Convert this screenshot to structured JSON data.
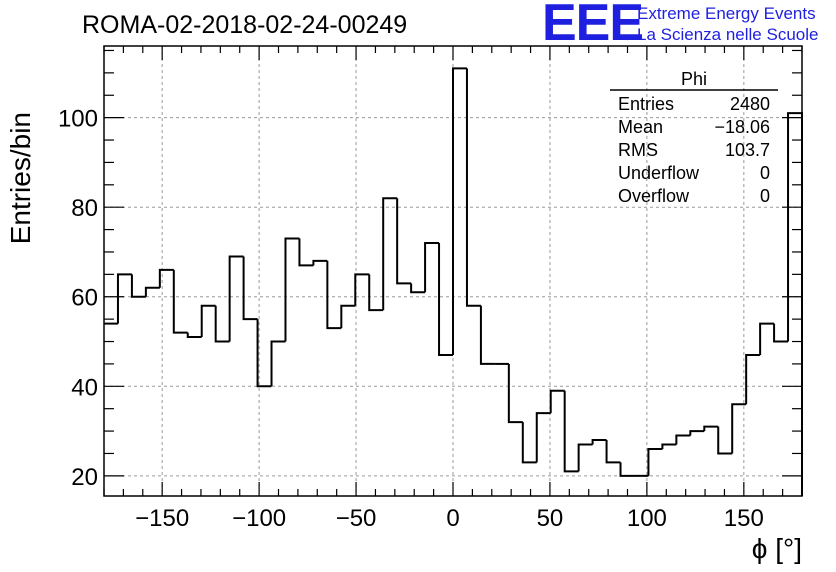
{
  "chart_data": {
    "type": "bar",
    "title": "ROMA-02-2018-02-24-00249",
    "xlabel": "ϕ [°]",
    "ylabel": "Entries/bin",
    "xlim": [
      -180,
      180
    ],
    "ylim": [
      15.5,
      116
    ],
    "xticks": [
      -150,
      -100,
      -50,
      0,
      50,
      100,
      150
    ],
    "xtick_labels": [
      "−150",
      "−100",
      "−50",
      "0",
      "50",
      "100",
      "150"
    ],
    "yticks": [
      20,
      40,
      60,
      80,
      100
    ],
    "ytick_labels": [
      "20",
      "40",
      "60",
      "80",
      "100"
    ],
    "grid": true,
    "bin_edges_start": -180,
    "bin_width": 7.2,
    "values": [
      54,
      65,
      60,
      62,
      66,
      52,
      51,
      58,
      50,
      69,
      55,
      40,
      50,
      73,
      67,
      68,
      53,
      58,
      65,
      57,
      82,
      63,
      61,
      72,
      47,
      111,
      58,
      45,
      45,
      32,
      23,
      34,
      39,
      21,
      27,
      28,
      23,
      20,
      20,
      26,
      27,
      29,
      30,
      31,
      25,
      36,
      47,
      54,
      50,
      101
    ],
    "stats_box": {
      "name": "Phi",
      "rows": [
        {
          "label": "Entries",
          "value": "2480"
        },
        {
          "label": "Mean",
          "value": "−18.06"
        },
        {
          "label": "RMS",
          "value": "103.7"
        },
        {
          "label": "Underflow",
          "value": "0"
        },
        {
          "label": "Overflow",
          "value": "0"
        }
      ]
    }
  },
  "logo": {
    "mark": "EEE",
    "line1": "Extreme Energy Events",
    "line2": "La Scienza nelle Scuole",
    "color": "#1f1fe0"
  },
  "colors": {
    "histogram_line": "#000000",
    "grid": "#9a9a9a"
  }
}
